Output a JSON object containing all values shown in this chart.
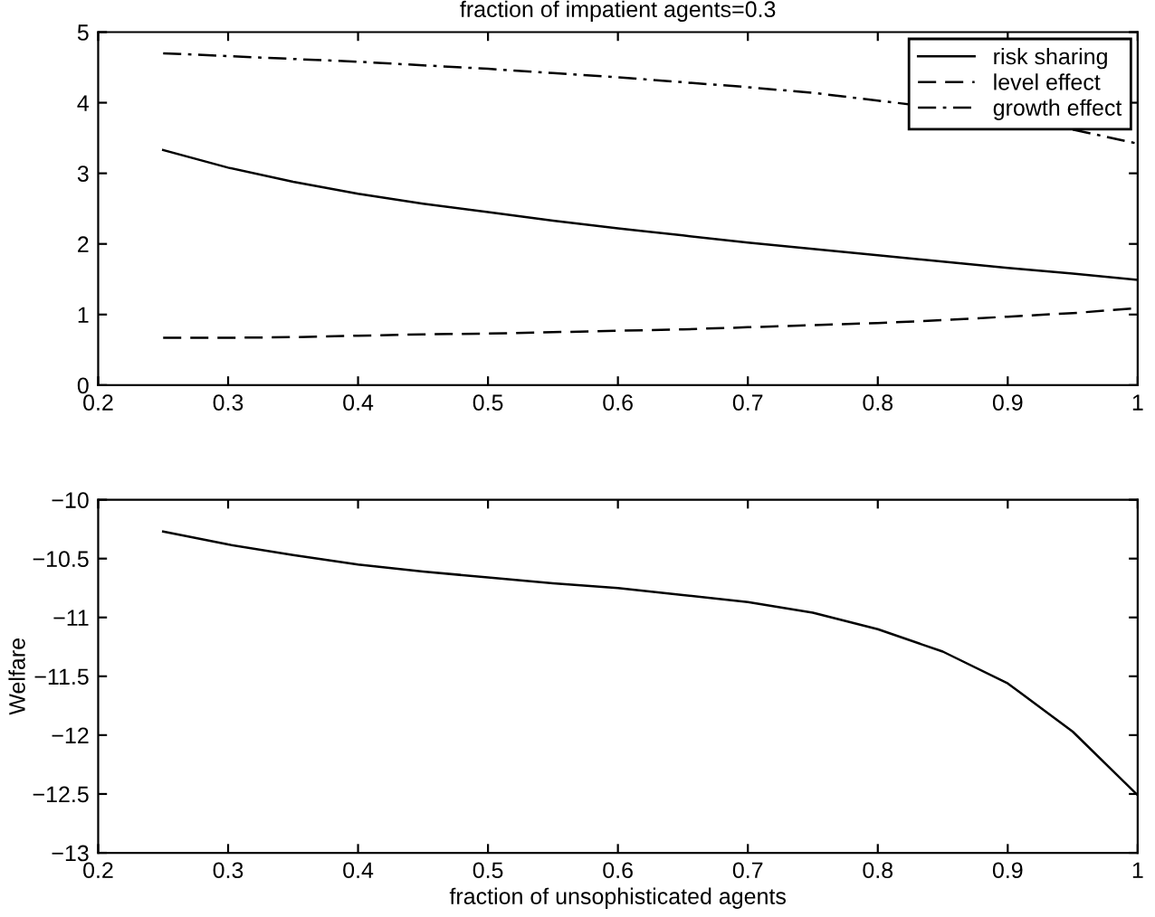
{
  "chart_data": [
    {
      "type": "line",
      "title": "fraction of impatient agents=0.3",
      "x": [
        0.25,
        0.3,
        0.35,
        0.4,
        0.45,
        0.5,
        0.55,
        0.6,
        0.65,
        0.7,
        0.75,
        0.8,
        0.85,
        0.9,
        0.95,
        1
      ],
      "series": [
        {
          "name": "risk sharing",
          "color": "#000000",
          "line_style": "solid",
          "values": [
            3.33,
            3.08,
            2.88,
            2.71,
            2.57,
            2.45,
            2.33,
            2.22,
            2.12,
            2.02,
            1.93,
            1.84,
            1.75,
            1.66,
            1.58,
            1.49
          ]
        },
        {
          "name": "level effect",
          "color": "#000000",
          "line_style": "dashed",
          "values": [
            0.67,
            0.67,
            0.68,
            0.7,
            0.72,
            0.73,
            0.75,
            0.77,
            0.79,
            0.82,
            0.85,
            0.88,
            0.92,
            0.97,
            1.02,
            1.09
          ]
        },
        {
          "name": "growth effect",
          "color": "#000000",
          "line_style": "dashdot",
          "values": [
            4.7,
            4.66,
            4.62,
            4.58,
            4.53,
            4.48,
            4.42,
            4.36,
            4.29,
            4.22,
            4.14,
            4.03,
            3.92,
            null,
            3.62,
            3.42
          ]
        }
      ],
      "xlim": [
        0.2,
        1
      ],
      "xticks": [
        0.2,
        0.3,
        0.4,
        0.5,
        0.6,
        0.7,
        0.8,
        0.9,
        1
      ],
      "ylim": [
        0,
        5
      ],
      "yticks": [
        0,
        1,
        2,
        3,
        4,
        5
      ],
      "grid": false,
      "legend": "top right"
    },
    {
      "type": "line",
      "xlabel": "fraction of unsophisticated agents",
      "ylabel": "Welfare",
      "x": [
        0.25,
        0.3,
        0.35,
        0.4,
        0.45,
        0.5,
        0.55,
        0.6,
        0.65,
        0.7,
        0.75,
        0.8,
        0.85,
        0.9,
        0.95,
        1
      ],
      "series": [
        {
          "color": "#000000",
          "line_style": "solid",
          "values": [
            -10.27,
            -10.38,
            -10.47,
            -10.55,
            -10.61,
            -10.66,
            -10.71,
            -10.75,
            -10.81,
            -10.87,
            -10.96,
            -11.1,
            -11.29,
            -11.56,
            -11.97,
            -12.51
          ]
        }
      ],
      "xlim": [
        0.2,
        1
      ],
      "xticks": [
        0.2,
        0.3,
        0.4,
        0.5,
        0.6,
        0.7,
        0.8,
        0.9,
        1
      ],
      "ylim": [
        -13,
        -10
      ],
      "yticks": [
        {
          "value": -13,
          "label": "−13"
        },
        {
          "value": -12.5,
          "label": "−12.5"
        },
        {
          "value": -12,
          "label": "−12"
        },
        {
          "value": -11.5,
          "label": "−11.5"
        },
        {
          "value": -11,
          "label": "−11"
        },
        {
          "value": -10.5,
          "label": "−10.5"
        },
        {
          "value": -10,
          "label": "−10"
        }
      ],
      "grid": false,
      "legend": false
    }
  ]
}
